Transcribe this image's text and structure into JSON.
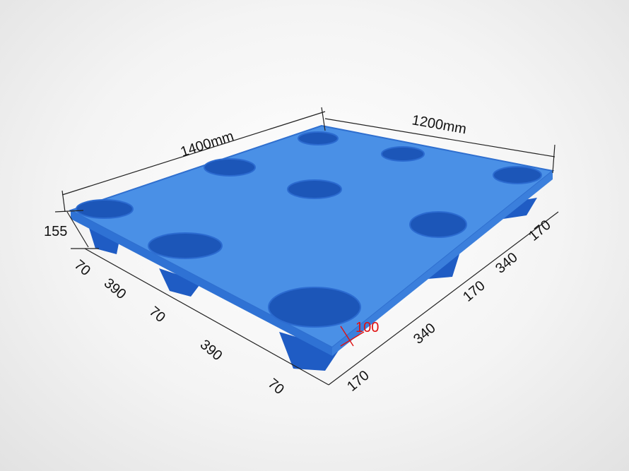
{
  "dimensions": {
    "length": "1400mm",
    "width": "1200mm",
    "height": "155",
    "left_side": [
      "70",
      "390",
      "70",
      "390",
      "70"
    ],
    "right_side": [
      "170",
      "340",
      "170",
      "340",
      "170"
    ],
    "foot_height": "100"
  },
  "colors": {
    "pallet": "#3d86e0",
    "pallet_shadow": "#1f5fc0",
    "highlight_dimension": "#e01010"
  }
}
